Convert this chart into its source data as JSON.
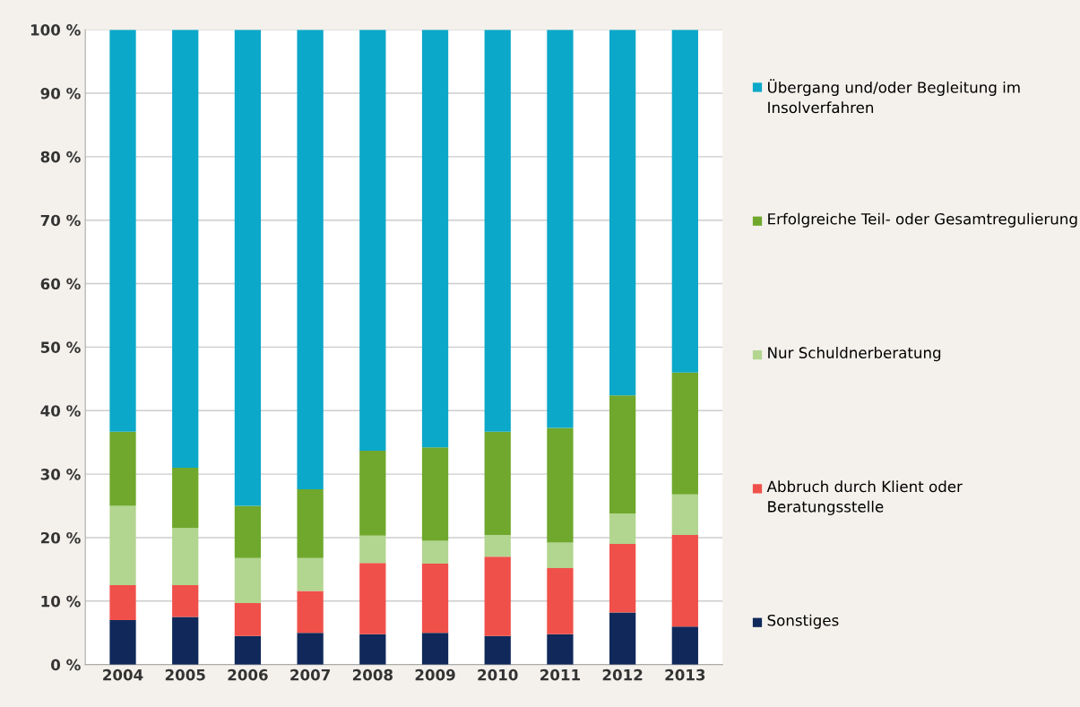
{
  "chart_data": {
    "type": "bar",
    "stacked": true,
    "categories": [
      "2004",
      "2005",
      "2006",
      "2007",
      "2008",
      "2009",
      "2010",
      "2011",
      "2012",
      "2013"
    ],
    "series": [
      {
        "name": "Sonstiges",
        "color": "#10295a",
        "values": [
          7,
          7.5,
          4.5,
          5,
          4.8,
          5,
          4.5,
          4.8,
          8.2,
          6
        ]
      },
      {
        "name": "Abbruch durch Klient oder Beratungsstelle",
        "color": "#f0504a",
        "values": [
          5.5,
          5,
          5.2,
          6.6,
          11.2,
          10.9,
          12.5,
          10.4,
          10.8,
          14.4
        ]
      },
      {
        "name": "Nur Schuldnerberatung",
        "color": "#b2d58f",
        "values": [
          12.5,
          9,
          7.1,
          5.2,
          4.3,
          3.6,
          3.4,
          4,
          4.8,
          6.4
        ]
      },
      {
        "name": "Erfolgreiche Teil- oder Gesamtregulierung",
        "color": "#6fa82c",
        "values": [
          11.7,
          9.5,
          8.2,
          10.8,
          13.4,
          14.7,
          16.3,
          18.1,
          18.6,
          19.2
        ]
      },
      {
        "name": "Übergang und/oder Begleitung im Insolverfahren",
        "color": "#0ba8c9",
        "values": [
          63.3,
          69,
          75,
          72.4,
          66.3,
          65.8,
          63.3,
          62.7,
          57.6,
          54
        ]
      }
    ],
    "ylim": [
      0,
      100
    ],
    "yticks": [
      {
        "value": 0,
        "label": "0 %"
      },
      {
        "value": 10,
        "label": "10 %"
      },
      {
        "value": 20,
        "label": "20 %"
      },
      {
        "value": 30,
        "label": "30 %"
      },
      {
        "value": 40,
        "label": "40 %"
      },
      {
        "value": 50,
        "label": "50 %"
      },
      {
        "value": 60,
        "label": "60 %"
      },
      {
        "value": 70,
        "label": "70 %"
      },
      {
        "value": 80,
        "label": "80 %"
      },
      {
        "value": 90,
        "label": "90 %"
      },
      {
        "value": 100,
        "label": "100 %"
      }
    ],
    "grid": "y",
    "legend": "right"
  }
}
